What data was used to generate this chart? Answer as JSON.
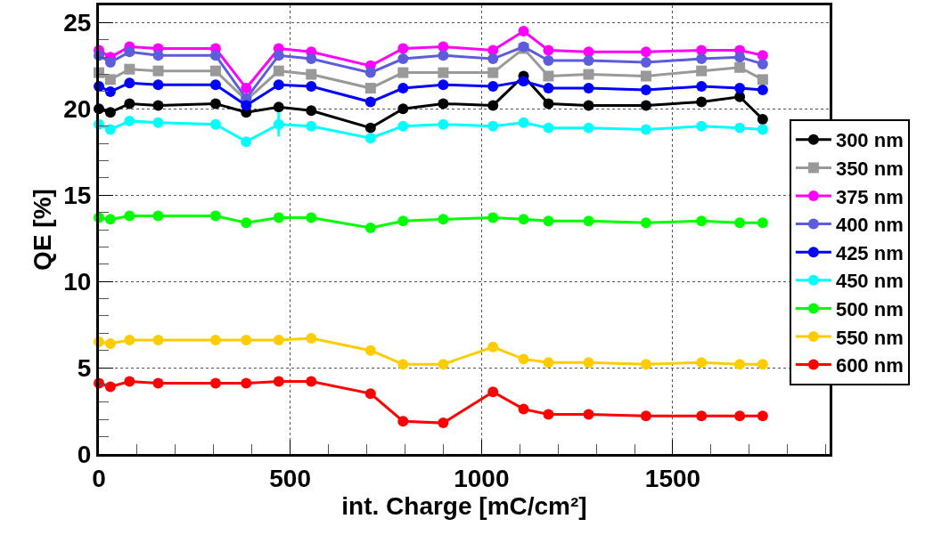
{
  "chart_data": {
    "type": "line",
    "xlabel": "int. Charge [mC/cm²]",
    "ylabel": "QE [%]",
    "xlim": [
      0,
      1910
    ],
    "xticks": [
      0,
      500,
      1000,
      1500
    ],
    "ylim": [
      0,
      26
    ],
    "yticks": [
      0,
      5,
      10,
      15,
      20,
      25
    ],
    "grid": true,
    "legend": "right",
    "marker": "circle",
    "line_style": "solid",
    "x": [
      0,
      30,
      80,
      155,
      305,
      385,
      470,
      555,
      710,
      795,
      900,
      1030,
      1110,
      1175,
      1280,
      1430,
      1575,
      1675,
      1735
    ],
    "series": [
      {
        "name": "300 nm",
        "color": "#000000",
        "values": [
          20.0,
          19.8,
          20.3,
          20.2,
          20.3,
          19.8,
          20.1,
          19.9,
          18.9,
          20.0,
          20.3,
          20.2,
          21.9,
          20.3,
          20.2,
          20.2,
          20.4,
          20.7,
          19.4
        ]
      },
      {
        "name": "350 nm",
        "color": "#999999",
        "marker": "square",
        "values": [
          22.1,
          21.7,
          22.3,
          22.2,
          22.2,
          20.5,
          22.2,
          22.0,
          21.2,
          22.1,
          22.1,
          22.1,
          23.5,
          21.9,
          22.0,
          21.9,
          22.2,
          22.4,
          21.7
        ]
      },
      {
        "name": "375 nm",
        "color": "#ff00ff",
        "values": [
          23.4,
          23.0,
          23.6,
          23.5,
          23.5,
          21.2,
          23.5,
          23.3,
          22.5,
          23.5,
          23.6,
          23.4,
          24.5,
          23.4,
          23.3,
          23.3,
          23.4,
          23.4,
          23.1
        ]
      },
      {
        "name": "400 nm",
        "color": "#5c5cdc",
        "values": [
          23.1,
          22.7,
          23.3,
          23.1,
          23.1,
          20.6,
          23.1,
          22.9,
          22.1,
          22.9,
          23.1,
          22.9,
          23.6,
          22.8,
          22.8,
          22.7,
          22.9,
          23.0,
          22.6
        ]
      },
      {
        "name": "425 nm",
        "color": "#0000ff",
        "values": [
          21.3,
          21.0,
          21.5,
          21.4,
          21.4,
          20.2,
          21.4,
          21.3,
          20.4,
          21.2,
          21.4,
          21.3,
          21.6,
          21.2,
          21.2,
          21.1,
          21.3,
          21.2,
          21.1
        ]
      },
      {
        "name": "450 nm",
        "color": "#00ffff",
        "values": [
          19.1,
          18.8,
          19.3,
          19.2,
          19.1,
          18.1,
          19.1,
          19.0,
          18.3,
          19.0,
          19.1,
          19.0,
          19.2,
          18.9,
          18.9,
          18.8,
          19.0,
          18.9,
          18.8
        ],
        "errors": [
          null,
          null,
          null,
          null,
          null,
          null,
          0.7,
          null,
          null,
          null,
          null,
          null,
          null,
          null,
          null,
          null,
          null,
          null,
          null
        ]
      },
      {
        "name": "500 nm",
        "color": "#00ff00",
        "values": [
          13.7,
          13.6,
          13.8,
          13.8,
          13.8,
          13.4,
          13.7,
          13.7,
          13.1,
          13.5,
          13.6,
          13.7,
          13.6,
          13.5,
          13.5,
          13.4,
          13.5,
          13.4,
          13.4
        ]
      },
      {
        "name": "550 nm",
        "color": "#ffcc00",
        "values": [
          6.5,
          6.4,
          6.6,
          6.6,
          6.6,
          6.6,
          6.6,
          6.7,
          6.0,
          5.2,
          5.2,
          6.2,
          5.5,
          5.3,
          5.3,
          5.2,
          5.3,
          5.2,
          5.2
        ]
      },
      {
        "name": "600 nm",
        "color": "#ff0000",
        "values": [
          4.1,
          3.9,
          4.2,
          4.1,
          4.1,
          4.1,
          4.2,
          4.2,
          3.5,
          1.9,
          1.8,
          3.6,
          2.6,
          2.3,
          2.3,
          2.2,
          2.2,
          2.2,
          2.2
        ]
      }
    ]
  }
}
